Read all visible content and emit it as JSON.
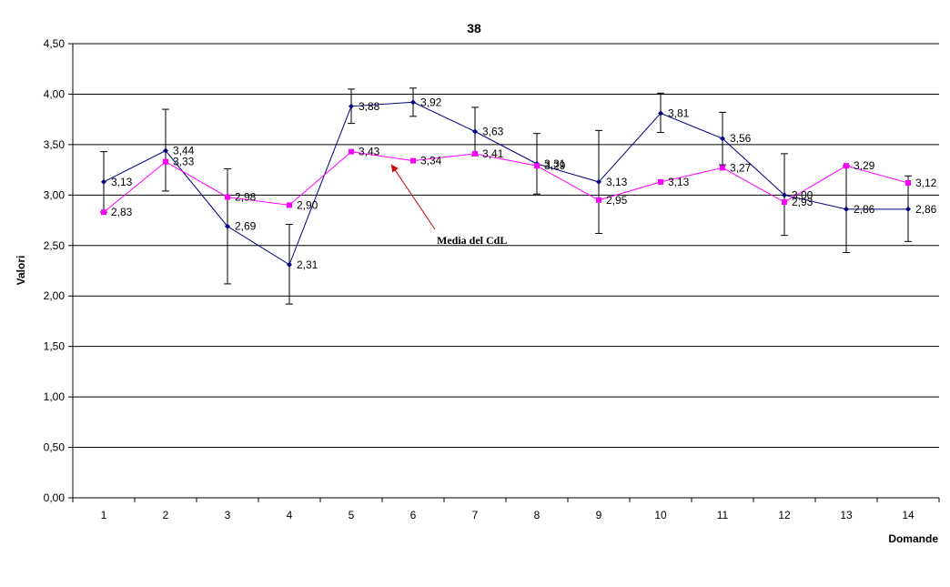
{
  "chart_data": {
    "type": "line",
    "title": "38",
    "xlabel": "Domande",
    "ylabel": "Valori",
    "ylim": [
      0,
      4.5
    ],
    "ytick_step": 0.5,
    "yticks": [
      "0,00",
      "0,50",
      "1,00",
      "1,50",
      "2,00",
      "2,50",
      "3,00",
      "3,50",
      "4,00",
      "4,50"
    ],
    "categories": [
      "1",
      "2",
      "3",
      "4",
      "5",
      "6",
      "7",
      "8",
      "9",
      "10",
      "11",
      "12",
      "13",
      "14"
    ],
    "grid": true,
    "series": [
      {
        "color": "#000080",
        "marker": "diamond",
        "values": [
          3.13,
          3.44,
          2.69,
          2.31,
          3.88,
          3.92,
          3.63,
          3.31,
          3.13,
          3.81,
          3.56,
          3.0,
          2.86,
          2.86
        ],
        "labels": [
          "3,13",
          "3,44",
          "2,69",
          "2,31",
          "3,88",
          "3,92",
          "3,63",
          "3,31",
          "3,13",
          "3,81",
          "3,56",
          "3,00",
          "2,86",
          "2,86"
        ],
        "error_high": [
          3.43,
          3.85,
          3.26,
          2.71,
          4.05,
          4.06,
          3.87,
          3.61,
          3.64,
          4.01,
          3.82,
          3.41,
          3.29,
          3.19
        ],
        "error_low": [
          2.83,
          3.04,
          2.12,
          1.92,
          3.71,
          3.78,
          3.39,
          3.01,
          2.62,
          3.62,
          3.3,
          2.6,
          2.43,
          2.54
        ]
      },
      {
        "color": "#FF00FF",
        "marker": "square",
        "values": [
          2.83,
          3.33,
          2.98,
          2.9,
          3.43,
          3.34,
          3.41,
          3.29,
          2.95,
          3.13,
          3.27,
          2.93,
          3.29,
          3.12
        ],
        "labels": [
          "2,83",
          "3,33",
          "2,98",
          "2,90",
          "3,43",
          "3,34",
          "3,41",
          "3,29",
          "2,95",
          "3,13",
          "3,27",
          "2,93",
          "3,29",
          "3,12"
        ]
      }
    ],
    "annotation": {
      "text": "Media del CdL",
      "arrow_color": "#CC0000"
    }
  }
}
